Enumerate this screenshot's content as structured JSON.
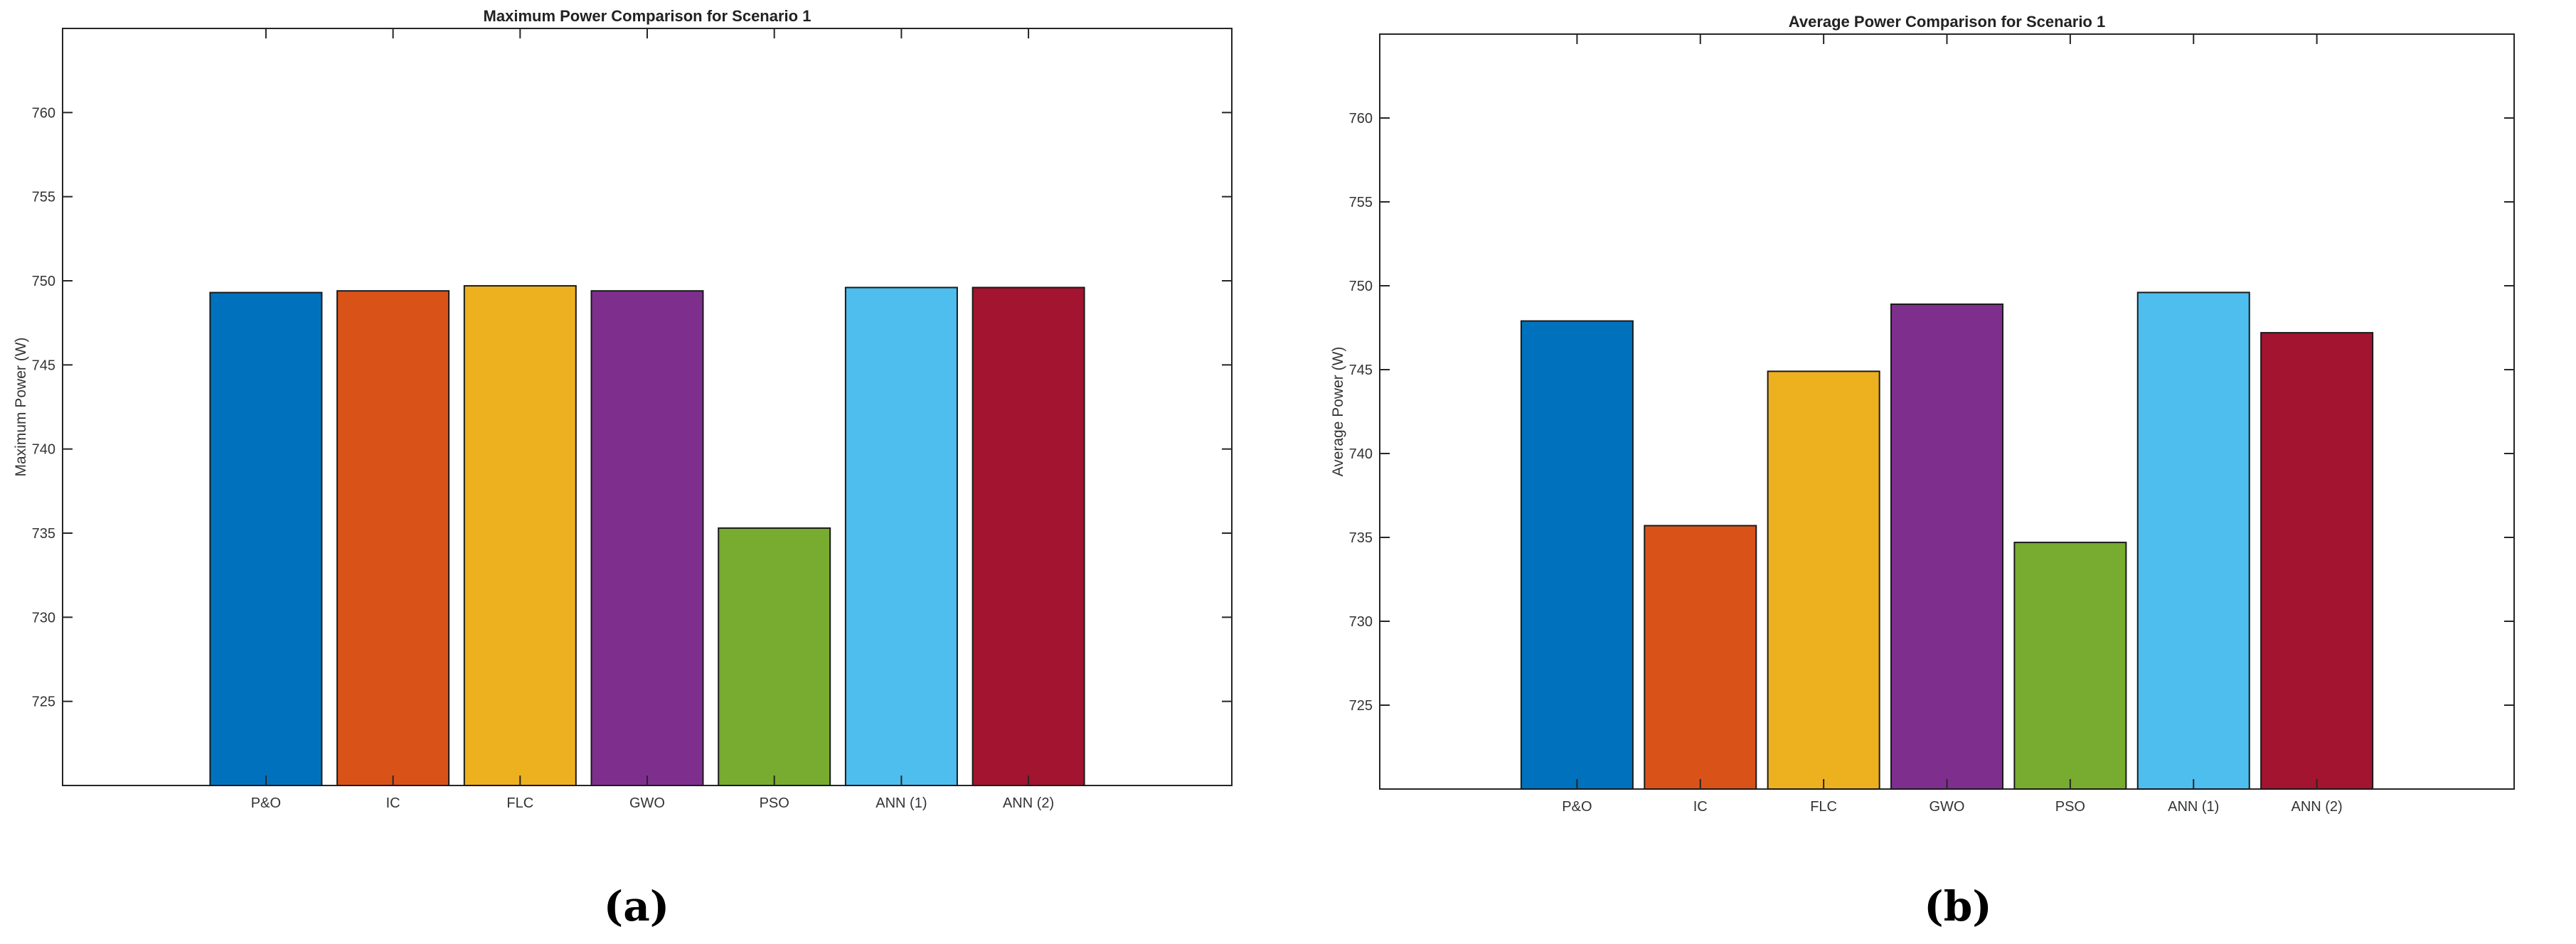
{
  "panels": [
    {
      "label": "(a)"
    },
    {
      "label": "(b)"
    }
  ],
  "chart_data": [
    {
      "type": "bar",
      "title": "Maximum Power Comparison for Scenario 1",
      "xlabel": "",
      "ylabel": "Maximum Power (W)",
      "categories": [
        "P&O",
        "IC",
        "FLC",
        "GWO",
        "PSO",
        "ANN (1)",
        "ANN (2)"
      ],
      "values": [
        749.3,
        749.4,
        749.7,
        749.4,
        735.3,
        749.6,
        749.6
      ],
      "colors": [
        "#0072BD",
        "#D95319",
        "#EDB120",
        "#7E2F8E",
        "#77AC30",
        "#4DBEEE",
        "#A2142F"
      ],
      "ylim": [
        720,
        765
      ],
      "yticks": [
        725,
        730,
        735,
        740,
        745,
        750,
        755,
        760
      ],
      "grid": false
    },
    {
      "type": "bar",
      "title": "Average Power Comparison for Scenario 1",
      "xlabel": "",
      "ylabel": "Average Power (W)",
      "categories": [
        "P&O",
        "IC",
        "FLC",
        "GWO",
        "PSO",
        "ANN (1)",
        "ANN (2)"
      ],
      "values": [
        747.9,
        735.7,
        744.9,
        748.9,
        734.7,
        749.6,
        747.2
      ],
      "colors": [
        "#0072BD",
        "#D95319",
        "#EDB120",
        "#7E2F8E",
        "#77AC30",
        "#4DBEEE",
        "#A2142F"
      ],
      "ylim": [
        720,
        765
      ],
      "yticks": [
        725,
        730,
        735,
        740,
        745,
        750,
        755,
        760
      ],
      "grid": false
    }
  ]
}
